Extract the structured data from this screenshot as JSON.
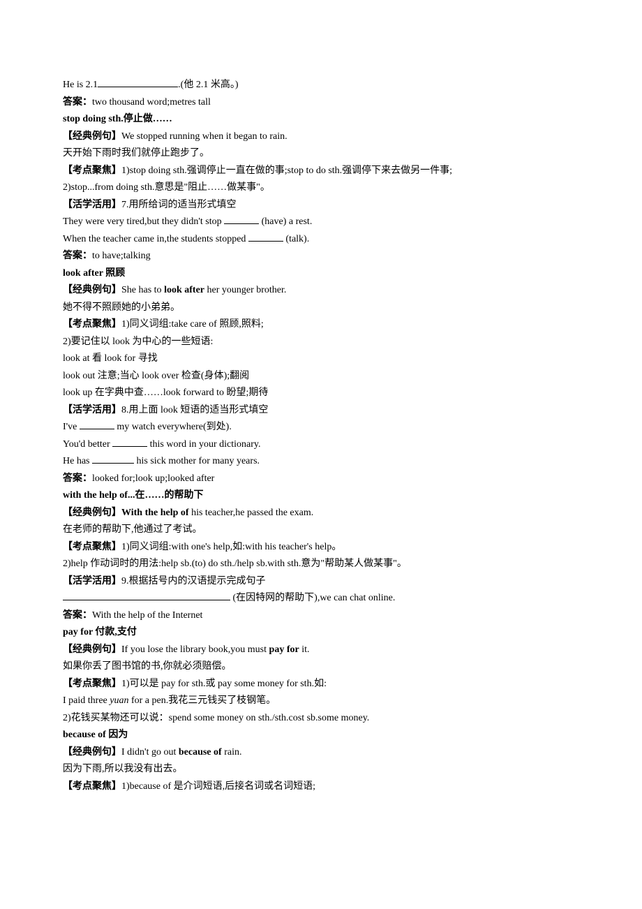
{
  "lines": [
    {
      "type": "fill",
      "pre": "He is 2.1",
      "blank": "long",
      "post": ".(他 2.1 米高。)"
    },
    {
      "type": "answer",
      "label": "答案：",
      "text": "two  thousand  word;metres tall"
    },
    {
      "type": "heading",
      "text": "stop doing sth.停止做……"
    },
    {
      "type": "tag",
      "tag": "【经典例句】",
      "text": "We stopped running when it began to rain."
    },
    {
      "type": "plain",
      "text": "天开始下雨时我们就停止跑步了。"
    },
    {
      "type": "tag",
      "tag": "【考点聚焦】",
      "text": "1)stop doing sth.强调停止一直在做的事;stop to do sth.强调停下来去做另一件事;"
    },
    {
      "type": "plain",
      "text": "2)stop...from doing sth.意思是\"阻止……做某事\"。"
    },
    {
      "type": "tag",
      "tag": "【活学活用】",
      "text": "7.用所给词的适当形式填空"
    },
    {
      "type": "fill",
      "pre": "They were very tired,but they didn't stop ",
      "blank": "short",
      "post": " (have) a rest."
    },
    {
      "type": "fill",
      "pre": "When the teacher came in,the students stopped ",
      "blank": "short",
      "post": " (talk)."
    },
    {
      "type": "answer",
      "label": "答案：",
      "text": "to have;talking"
    },
    {
      "type": "heading",
      "text": "look after 照顾"
    },
    {
      "type": "tag-bold",
      "tag": "【经典例句】",
      "pre": "She has to ",
      "boldtext": "look after",
      "post": " her younger brother."
    },
    {
      "type": "plain",
      "text": "她不得不照顾她的小弟弟。"
    },
    {
      "type": "tag",
      "tag": "【考点聚焦】",
      "text": "1)同义词组:take care of 照顾,照料;"
    },
    {
      "type": "plain",
      "text": "2)要记住以 look 为中心的一些短语:"
    },
    {
      "type": "plain",
      "text": "look at 看 look for 寻找"
    },
    {
      "type": "plain",
      "text": "look out 注意;当心 look over 检查(身体);翻阅"
    },
    {
      "type": "plain",
      "text": "look up 在字典中查……look forward to 盼望;期待"
    },
    {
      "type": "tag",
      "tag": "【活学活用】",
      "text": "8.用上面 look 短语的适当形式填空"
    },
    {
      "type": "fill",
      "pre": "I've ",
      "blank": "short",
      "post": " my watch everywhere(到处)."
    },
    {
      "type": "fill",
      "pre": "You'd better ",
      "blank": "short",
      "post": " this word in your dictionary."
    },
    {
      "type": "fill",
      "pre": "He has ",
      "blank": "med",
      "post": " his sick mother for many years."
    },
    {
      "type": "answer",
      "label": "答案：",
      "text": "looked for;look up;looked after"
    },
    {
      "type": "heading",
      "text": "with the help of...在……的帮助下"
    },
    {
      "type": "tag-bold",
      "tag": "【经典例句】",
      "pre": "",
      "boldtext": "With the help of",
      "post": " his teacher,he passed the exam."
    },
    {
      "type": "plain",
      "text": "在老师的帮助下,他通过了考试。"
    },
    {
      "type": "tag",
      "tag": "【考点聚焦】",
      "text": "1)同义词组:with one's help,如:with his teacher's help。"
    },
    {
      "type": "plain",
      "text": "2)help 作动词时的用法:help sb.(to) do sth./help sb.with sth.意为\"帮助某人做某事\"。"
    },
    {
      "type": "tag",
      "tag": "【活学活用】",
      "text": "9.根据括号内的汉语提示完成句子"
    },
    {
      "type": "fill",
      "pre": "",
      "blank": "xlong",
      "post": " (在因特网的帮助下),we can chat online."
    },
    {
      "type": "answer",
      "label": "答案：",
      "text": "With the help of the Internet"
    },
    {
      "type": "heading",
      "text": "pay for 付款,支付"
    },
    {
      "type": "tag-bold",
      "tag": "【经典例句】",
      "pre": "If you lose the library book,you must ",
      "boldtext": "pay for",
      "post": " it."
    },
    {
      "type": "plain",
      "text": "如果你丢了图书馆的书,你就必须赔偿。"
    },
    {
      "type": "tag",
      "tag": "【考点聚焦】",
      "text": "1)可以是 pay for sth.或 pay some money for sth.如:"
    },
    {
      "type": "italic-part",
      "pre": "I paid three ",
      "italictext": "yuan",
      "post": " for a pen.我花三元钱买了枝钢笔。"
    },
    {
      "type": "plain",
      "text": "2)花钱买某物还可以说：spend some money on sth./sth.cost sb.some money."
    },
    {
      "type": "heading",
      "text": "because of 因为"
    },
    {
      "type": "tag-bold",
      "tag": "【经典例句】",
      "pre": "I didn't go out ",
      "boldtext": "because of",
      "post": " rain."
    },
    {
      "type": "plain",
      "text": "因为下雨,所以我没有出去。"
    },
    {
      "type": "tag",
      "tag": "【考点聚焦】",
      "text": "1)because of 是介词短语,后接名词或名词短语;"
    }
  ]
}
